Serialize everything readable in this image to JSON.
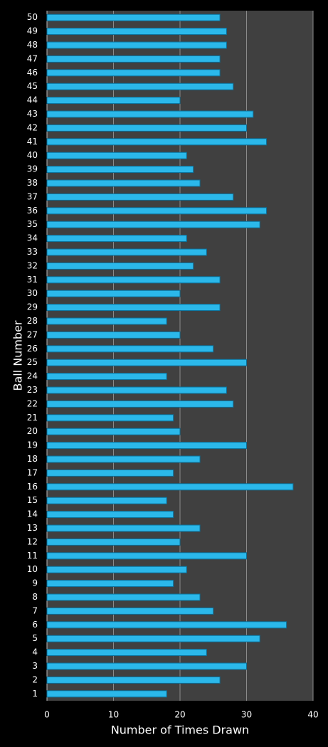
{
  "chart_data": {
    "type": "barh",
    "xlabel": "Number of Times Drawn",
    "ylabel": "Ball Number",
    "categories": [
      "1",
      "2",
      "3",
      "4",
      "5",
      "6",
      "7",
      "8",
      "9",
      "10",
      "11",
      "12",
      "13",
      "14",
      "15",
      "16",
      "17",
      "18",
      "19",
      "20",
      "21",
      "22",
      "23",
      "24",
      "25",
      "26",
      "27",
      "28",
      "29",
      "30",
      "31",
      "32",
      "33",
      "34",
      "35",
      "36",
      "37",
      "38",
      "39",
      "40",
      "41",
      "42",
      "43",
      "44",
      "45",
      "46",
      "47",
      "48",
      "49",
      "50"
    ],
    "values": [
      18,
      26,
      30,
      24,
      32,
      36,
      25,
      23,
      19,
      21,
      30,
      20,
      23,
      19,
      18,
      37,
      19,
      23,
      30,
      20,
      19,
      28,
      27,
      18,
      30,
      25,
      20,
      18,
      26,
      20,
      26,
      22,
      24,
      21,
      32,
      33,
      28,
      23,
      22,
      21,
      33,
      30,
      31,
      20,
      28,
      26,
      26,
      27,
      27,
      26
    ],
    "color": "#2bb8ea",
    "edgecolor": "#0b6f98",
    "xlim": [
      0,
      40
    ],
    "xticks": [
      0,
      10,
      20,
      30,
      40
    ],
    "grid": true
  }
}
